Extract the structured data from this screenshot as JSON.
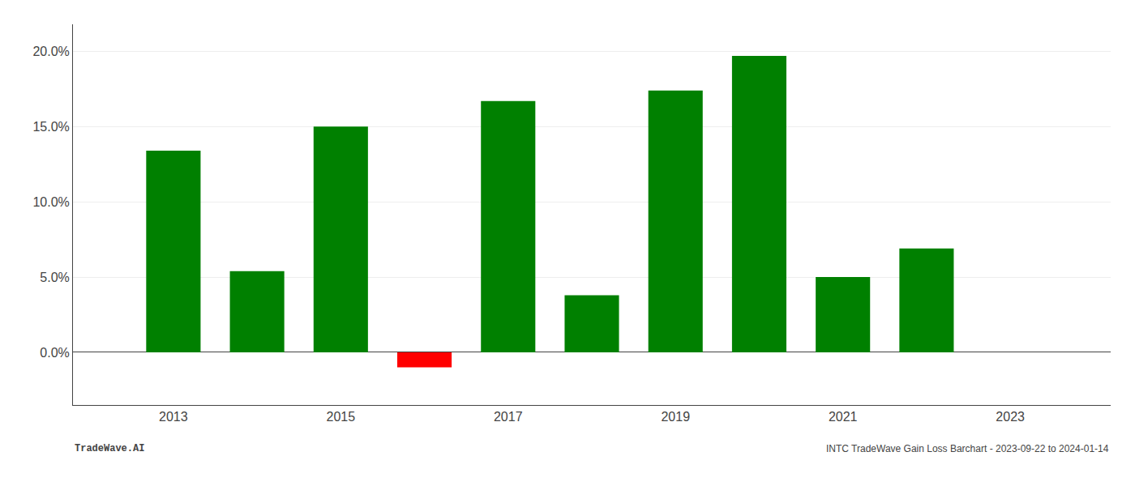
{
  "chart_data": {
    "type": "bar",
    "x": [
      2013,
      2014,
      2015,
      2016,
      2017,
      2018,
      2019,
      2020,
      2021,
      2022
    ],
    "values": [
      0.134,
      0.054,
      0.15,
      -0.01,
      0.167,
      0.038,
      0.174,
      0.197,
      0.05,
      0.069
    ],
    "colors": [
      "#008000",
      "#008000",
      "#008000",
      "#ff0000",
      "#008000",
      "#008000",
      "#008000",
      "#008000",
      "#008000",
      "#008000"
    ],
    "xlim": [
      2011.8,
      2024.2
    ],
    "xticks": [
      2013,
      2015,
      2017,
      2019,
      2021,
      2023
    ],
    "ylim": [
      -0.035,
      0.218
    ],
    "yticks": [
      {
        "value": 0.0,
        "label": "0.0%"
      },
      {
        "value": 0.05,
        "label": "5.0%"
      },
      {
        "value": 0.1,
        "label": "10.0%"
      },
      {
        "value": 0.15,
        "label": "15.0%"
      },
      {
        "value": 0.2,
        "label": "20.0%"
      }
    ],
    "grid": "y",
    "annotations": [
      "TradeWave.AI",
      "INTC TradeWave Gain Loss Barchart - 2023-09-22 to 2024-01-14"
    ]
  }
}
